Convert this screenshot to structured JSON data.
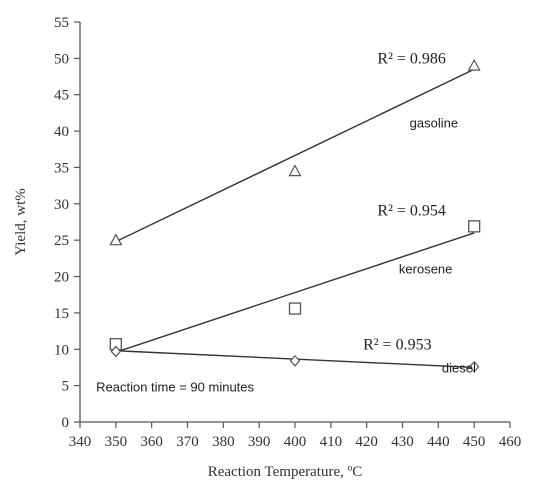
{
  "chart_data": {
    "type": "scatter",
    "title": "",
    "xlabel": "Reaction Temperature, ºC",
    "ylabel": "Yield, wt%",
    "xlim": [
      340,
      460
    ],
    "ylim": [
      0,
      55
    ],
    "xticks": [
      340,
      350,
      360,
      370,
      380,
      390,
      400,
      410,
      420,
      430,
      440,
      450,
      460
    ],
    "yticks": [
      0,
      5,
      10,
      15,
      20,
      25,
      30,
      35,
      40,
      45,
      50,
      55
    ],
    "grid": false,
    "legend": "none",
    "series": [
      {
        "name": "gasoline",
        "marker": "triangle",
        "x": [
          350,
          400,
          450
        ],
        "y": [
          25.0,
          34.5,
          49.0
        ],
        "trendline": {
          "x": [
            350,
            450
          ],
          "y": [
            24.8,
            48.5
          ]
        },
        "r2_label": "R² = 0.986"
      },
      {
        "name": "kerosene",
        "marker": "square",
        "x": [
          350,
          400,
          450
        ],
        "y": [
          10.7,
          15.6,
          26.9
        ],
        "trendline": {
          "x": [
            350,
            450
          ],
          "y": [
            9.6,
            26.0
          ]
        },
        "r2_label": "R² = 0.954"
      },
      {
        "name": "diesel",
        "marker": "diamond",
        "x": [
          350,
          400,
          450
        ],
        "y": [
          9.7,
          8.4,
          7.6
        ],
        "trendline": {
          "x": [
            350,
            450
          ],
          "y": [
            9.8,
            7.5
          ]
        },
        "r2_label": "R² = 0.953"
      }
    ],
    "annotations": [
      {
        "text": "R² = 0.986",
        "x": 423,
        "y": 49.3,
        "kind": "r2"
      },
      {
        "text": "gasoline",
        "x": 432,
        "y": 40.5,
        "kind": "label"
      },
      {
        "text": "R² = 0.954",
        "x": 423,
        "y": 28.4,
        "kind": "r2"
      },
      {
        "text": "kerosene",
        "x": 429,
        "y": 20.4,
        "kind": "label"
      },
      {
        "text": "R² = 0.953",
        "x": 419,
        "y": 10.0,
        "kind": "r2"
      },
      {
        "text": "diesel",
        "x": 441,
        "y": 6.8,
        "kind": "label"
      },
      {
        "text": "Reaction time = 90 minutes",
        "x": 344.5,
        "y": 4.2,
        "kind": "label"
      }
    ]
  }
}
